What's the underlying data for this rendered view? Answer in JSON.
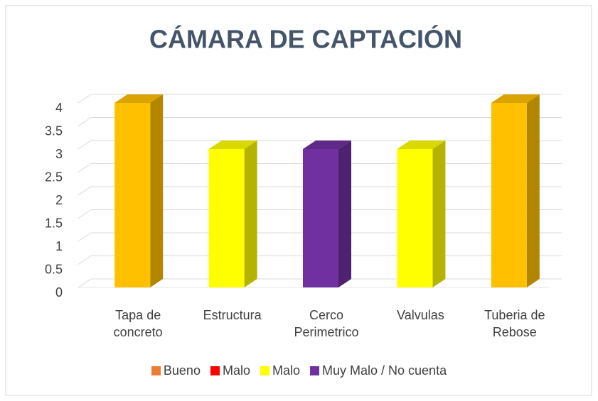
{
  "chart_data": {
    "type": "bar3d",
    "title": "CÁMARA DE CAPTACIÓN",
    "categories": [
      "Tapa de concreto",
      "Estructura",
      "Cerco Perimetrico",
      "Valvulas",
      "Tuberia de Rebose"
    ],
    "values": [
      4,
      3,
      3,
      3,
      4
    ],
    "colors": [
      "#FFC000",
      "#FFFF00",
      "#7030A0",
      "#FFFF00",
      "#FFC000"
    ],
    "ylim": [
      0,
      4
    ],
    "yticks": [
      0,
      0.5,
      1,
      1.5,
      2,
      2.5,
      3,
      3.5,
      4
    ],
    "grid": true,
    "legend": [
      {
        "name": "Bueno",
        "color": "#ED7D31"
      },
      {
        "name": "Malo",
        "color": "#FF0000"
      },
      {
        "name": "Malo",
        "color": "#FFFF00"
      },
      {
        "name": "Muy Malo / No cuenta",
        "color": "#7030A0"
      }
    ]
  }
}
